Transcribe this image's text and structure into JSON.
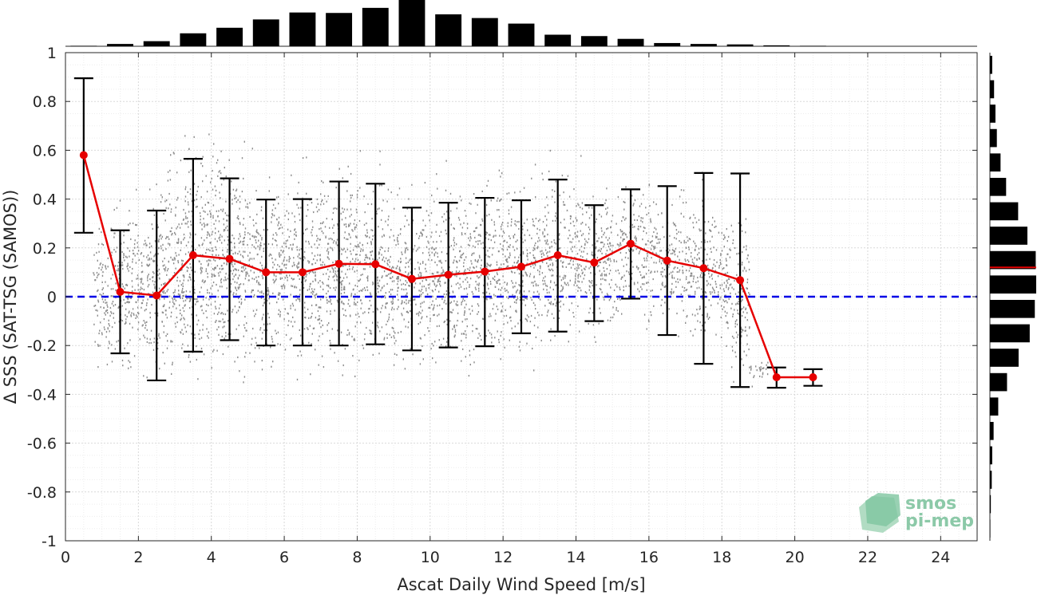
{
  "chart_data": {
    "type": "scatter",
    "title": "",
    "xlabel": "Ascat Daily Wind Speed [m/s]",
    "ylabel": "Δ SSS (SAT-TSG (SAMOS))",
    "xlim": [
      0,
      25
    ],
    "ylim": [
      -1,
      1
    ],
    "x_ticks": [
      "0",
      "2",
      "4",
      "6",
      "8",
      "10",
      "12",
      "14",
      "16",
      "18",
      "20",
      "22",
      "24"
    ],
    "y_ticks": [
      "-1",
      "-0.8",
      "-0.6",
      "-0.4",
      "-0.2",
      "0",
      "0.2",
      "0.4",
      "0.6",
      "0.8",
      "1"
    ],
    "grid": true,
    "minor_grid": true,
    "reference_line": {
      "y": 0,
      "style": "dashed",
      "color": "#0000e6"
    },
    "series": [
      {
        "name": "",
        "kind": "mean_with_std",
        "color": "#e60000",
        "x": [
          0.5,
          1.5,
          2.5,
          3.5,
          4.5,
          5.5,
          6.5,
          7.5,
          8.5,
          9.5,
          10.5,
          11.5,
          12.5,
          13.5,
          14.5,
          15.5,
          16.5,
          17.5,
          18.5,
          19.5,
          20.5
        ],
        "mean": [
          0.58,
          0.02,
          0.005,
          0.17,
          0.155,
          0.1,
          0.1,
          0.135,
          0.133,
          0.073,
          0.09,
          0.103,
          0.123,
          0.17,
          0.14,
          0.217,
          0.148,
          0.117,
          0.068,
          -0.33,
          -0.33
        ],
        "lower": [
          0.262,
          -0.232,
          -0.343,
          -0.225,
          -0.178,
          -0.2,
          -0.2,
          -0.2,
          -0.195,
          -0.22,
          -0.208,
          -0.203,
          -0.15,
          -0.143,
          -0.1,
          -0.008,
          -0.157,
          -0.275,
          -0.37,
          -0.373,
          -0.365
        ],
        "upper": [
          0.895,
          0.272,
          0.353,
          0.565,
          0.485,
          0.398,
          0.4,
          0.472,
          0.463,
          0.365,
          0.385,
          0.405,
          0.395,
          0.48,
          0.375,
          0.44,
          0.453,
          0.507,
          0.505,
          -0.29,
          -0.297
        ]
      },
      {
        "name": "",
        "kind": "scatter_cloud",
        "color": "#8c8c8c",
        "x_center": [
          1,
          1.5,
          2,
          2.5,
          3,
          3.5,
          4,
          4.5,
          5,
          5.5,
          6,
          6.5,
          7,
          7.5,
          8,
          8.5,
          9,
          9.5,
          10,
          10.5,
          11,
          11.5,
          12,
          12.5,
          13,
          13.5,
          14,
          14.5,
          15,
          15.5,
          16,
          16.5,
          17,
          17.5,
          18,
          18.5,
          19
        ],
        "y_center": [
          0.0,
          0.05,
          0.05,
          0.08,
          0.1,
          0.15,
          0.2,
          0.15,
          0.12,
          0.1,
          0.1,
          0.1,
          0.12,
          0.13,
          0.13,
          0.12,
          0.08,
          0.07,
          0.08,
          0.09,
          0.1,
          0.11,
          0.12,
          0.12,
          0.15,
          0.17,
          0.16,
          0.14,
          0.15,
          0.2,
          0.18,
          0.15,
          0.14,
          0.12,
          0.1,
          0.0,
          -0.3
        ],
        "y_spread": [
          0.25,
          0.3,
          0.3,
          0.35,
          0.4,
          0.42,
          0.42,
          0.4,
          0.36,
          0.33,
          0.33,
          0.34,
          0.36,
          0.36,
          0.35,
          0.34,
          0.33,
          0.32,
          0.32,
          0.32,
          0.32,
          0.33,
          0.33,
          0.32,
          0.33,
          0.3,
          0.28,
          0.26,
          0.26,
          0.24,
          0.25,
          0.25,
          0.25,
          0.28,
          0.25,
          0.3,
          0.05
        ]
      }
    ],
    "marginal_x": {
      "bin_centers": [
        0.5,
        1.5,
        2.5,
        3.5,
        4.5,
        5.5,
        6.5,
        7.5,
        8.5,
        9.5,
        10.5,
        11.5,
        12.5,
        13.5,
        14.5,
        15.5,
        16.5,
        17.5,
        18.5,
        19.5,
        20.5
      ],
      "relative_counts": [
        0.01,
        0.05,
        0.11,
        0.28,
        0.4,
        0.58,
        0.73,
        0.72,
        0.83,
        1.0,
        0.69,
        0.61,
        0.49,
        0.25,
        0.22,
        0.16,
        0.07,
        0.05,
        0.04,
        0.02,
        0.01
      ]
    },
    "marginal_y": {
      "bin_centers": [
        -0.95,
        -0.85,
        -0.75,
        -0.65,
        -0.55,
        -0.45,
        -0.35,
        -0.25,
        -0.15,
        -0.05,
        0.05,
        0.15,
        0.25,
        0.35,
        0.45,
        0.55,
        0.65,
        0.75,
        0.85,
        0.95
      ],
      "relative_counts": [
        0.01,
        0.02,
        0.04,
        0.05,
        0.08,
        0.18,
        0.37,
        0.62,
        0.86,
        0.97,
        1.0,
        0.99,
        0.81,
        0.61,
        0.35,
        0.23,
        0.15,
        0.12,
        0.09,
        0.05
      ],
      "median": 0.12,
      "median_color": "#e60000"
    }
  },
  "logo": {
    "line1": "smos",
    "line2": "pi-mep",
    "color": "#7fbf9a"
  }
}
